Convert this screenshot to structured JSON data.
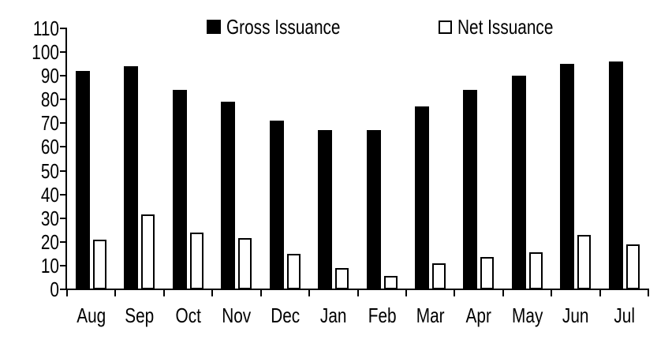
{
  "chart_data": {
    "type": "bar",
    "categories": [
      "Aug",
      "Sep",
      "Oct",
      "Nov",
      "Dec",
      "Jan",
      "Feb",
      "Mar",
      "Apr",
      "May",
      "Jun",
      "Jul"
    ],
    "series": [
      {
        "name": "Gross Issuance",
        "values": [
          92,
          94,
          84,
          79,
          71,
          67,
          67,
          77,
          84,
          90,
          95,
          96
        ],
        "fill": "#000000",
        "border": "#000000"
      },
      {
        "name": "Net Issuance",
        "values": [
          21,
          31.5,
          24,
          21.5,
          15,
          9,
          5.5,
          11,
          13.5,
          15.5,
          23,
          19
        ],
        "fill": "#ffffff",
        "border": "#000000"
      }
    ],
    "ylim": [
      0,
      110
    ],
    "ytick_step": 10,
    "yticks": [
      0,
      10,
      20,
      30,
      40,
      50,
      60,
      70,
      80,
      90,
      100,
      110
    ],
    "grid": false,
    "legend_position": "top-inside",
    "axis_color": "#000000",
    "background_color": "#ffffff",
    "text_color": "#000000"
  }
}
